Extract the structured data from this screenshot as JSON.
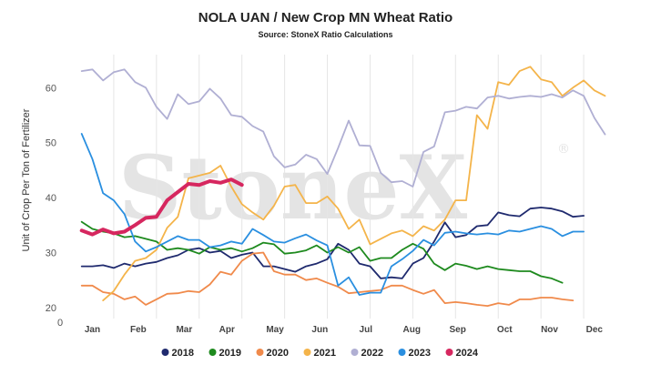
{
  "chart_data": {
    "type": "line",
    "title": "NOLA UAN / New Crop MN Wheat Ratio",
    "subtitle": "Source: StoneX Ratio Calculations",
    "ylabel": "Unit of Crop Per Ton of Fertilizer",
    "xlabel": "",
    "watermark": "StoneX",
    "watermark_mark": "®",
    "origin_label": "0",
    "ylim": [
      18,
      66
    ],
    "yticks": [
      20,
      30,
      40,
      50,
      60
    ],
    "xlim": [
      0,
      52
    ],
    "months": [
      {
        "label": "Jan",
        "week": 2
      },
      {
        "label": "Feb",
        "week": 6.3
      },
      {
        "label": "Mar",
        "week": 10.6
      },
      {
        "label": "Apr",
        "week": 14.6
      },
      {
        "label": "May",
        "week": 19.1
      },
      {
        "label": "Jun",
        "week": 23.3
      },
      {
        "label": "Jul",
        "week": 27.6
      },
      {
        "label": "Aug",
        "week": 31.9
      },
      {
        "label": "Sep",
        "week": 36.2
      },
      {
        "label": "Oct",
        "week": 40.6
      },
      {
        "label": "Nov",
        "week": 44.8
      },
      {
        "label": "Dec",
        "week": 49
      }
    ],
    "grid": "vertical",
    "legend": "bottom",
    "series": [
      {
        "name": "2018",
        "color": "#1f2a6e",
        "width": 1.8,
        "values": [
          [
            1,
            27.5
          ],
          [
            2,
            27.5
          ],
          [
            3,
            27.7
          ],
          [
            4,
            27.2
          ],
          [
            5,
            28
          ],
          [
            6,
            27.5
          ],
          [
            7,
            28
          ],
          [
            8,
            28.3
          ],
          [
            9,
            29
          ],
          [
            10,
            29.5
          ],
          [
            11,
            30.5
          ],
          [
            12,
            30.8
          ],
          [
            13,
            30
          ],
          [
            14,
            30.3
          ],
          [
            15,
            29
          ],
          [
            16,
            29.6
          ],
          [
            17,
            30
          ],
          [
            18,
            27.5
          ],
          [
            19,
            27.5
          ],
          [
            20,
            27
          ],
          [
            21,
            26.5
          ],
          [
            22,
            27.5
          ],
          [
            23,
            28
          ],
          [
            24,
            28.8
          ],
          [
            25,
            31.6
          ],
          [
            26,
            30.5
          ],
          [
            27,
            28
          ],
          [
            28,
            27.5
          ],
          [
            29,
            25.3
          ],
          [
            30,
            25.5
          ],
          [
            31,
            25.3
          ],
          [
            32,
            28
          ],
          [
            33,
            29
          ],
          [
            34,
            32
          ],
          [
            35,
            35.5
          ],
          [
            36,
            32.8
          ],
          [
            37,
            33.2
          ],
          [
            38,
            34.8
          ],
          [
            39,
            35
          ],
          [
            40,
            37.3
          ],
          [
            41,
            36.8
          ],
          [
            42,
            36.6
          ],
          [
            43,
            38
          ],
          [
            44,
            38.2
          ],
          [
            45,
            38
          ],
          [
            46,
            37.5
          ],
          [
            47,
            36.5
          ],
          [
            48,
            36.7
          ]
        ]
      },
      {
        "name": "2019",
        "color": "#1e8a1e",
        "width": 1.8,
        "values": [
          [
            1,
            35.6
          ],
          [
            2,
            34.3
          ],
          [
            3,
            33.8
          ],
          [
            4,
            33.5
          ],
          [
            5,
            32.8
          ],
          [
            6,
            33
          ],
          [
            7,
            32.5
          ],
          [
            8,
            32
          ],
          [
            9,
            30.5
          ],
          [
            10,
            30.8
          ],
          [
            11,
            30.5
          ],
          [
            12,
            29.8
          ],
          [
            13,
            31
          ],
          [
            14,
            30.5
          ],
          [
            15,
            30.8
          ],
          [
            16,
            30.2
          ],
          [
            17,
            30.8
          ],
          [
            18,
            31.8
          ],
          [
            19,
            31.5
          ],
          [
            20,
            29.8
          ],
          [
            21,
            30
          ],
          [
            22,
            30.4
          ],
          [
            23,
            31.3
          ],
          [
            24,
            30
          ],
          [
            25,
            31
          ],
          [
            26,
            30
          ],
          [
            27,
            31
          ],
          [
            28,
            28.5
          ],
          [
            29,
            29
          ],
          [
            30,
            29
          ],
          [
            31,
            30.5
          ],
          [
            32,
            31.6
          ],
          [
            33,
            30.7
          ],
          [
            34,
            28
          ],
          [
            35,
            26.8
          ],
          [
            36,
            28
          ],
          [
            37,
            27.6
          ],
          [
            38,
            27
          ],
          [
            39,
            27.5
          ],
          [
            40,
            27
          ],
          [
            41,
            26.8
          ],
          [
            42,
            26.6
          ],
          [
            43,
            26.6
          ],
          [
            44,
            25.7
          ],
          [
            45,
            25.3
          ],
          [
            46,
            24.5
          ]
        ]
      },
      {
        "name": "2020",
        "color": "#f08a4b",
        "width": 1.8,
        "values": [
          [
            1,
            24
          ],
          [
            2,
            24
          ],
          [
            3,
            22.8
          ],
          [
            4,
            22.5
          ],
          [
            5,
            21.5
          ],
          [
            6,
            22
          ],
          [
            7,
            20.5
          ],
          [
            8,
            21.5
          ],
          [
            9,
            22.5
          ],
          [
            10,
            22.6
          ],
          [
            11,
            23
          ],
          [
            12,
            22.8
          ],
          [
            13,
            24.2
          ],
          [
            14,
            26.5
          ],
          [
            15,
            26
          ],
          [
            16,
            28.5
          ],
          [
            17,
            29.8
          ],
          [
            18,
            30
          ],
          [
            19,
            26.6
          ],
          [
            20,
            26
          ],
          [
            21,
            26
          ],
          [
            22,
            25
          ],
          [
            23,
            25.3
          ],
          [
            24,
            24.5
          ],
          [
            25,
            23.8
          ],
          [
            26,
            22.6
          ],
          [
            27,
            22.8
          ],
          [
            28,
            23
          ],
          [
            29,
            23.2
          ],
          [
            30,
            24
          ],
          [
            31,
            24
          ],
          [
            32,
            23.2
          ],
          [
            33,
            22.5
          ],
          [
            34,
            23.2
          ],
          [
            35,
            20.8
          ],
          [
            36,
            21
          ],
          [
            37,
            20.8
          ],
          [
            38,
            20.5
          ],
          [
            39,
            20.3
          ],
          [
            40,
            20.8
          ],
          [
            41,
            20.5
          ],
          [
            42,
            21.5
          ],
          [
            43,
            21.5
          ],
          [
            44,
            21.8
          ],
          [
            45,
            21.8
          ],
          [
            46,
            21.5
          ],
          [
            47,
            21.3
          ]
        ]
      },
      {
        "name": "2021",
        "color": "#f4b44a",
        "width": 1.8,
        "values": [
          [
            3,
            21.3
          ],
          [
            4,
            23
          ],
          [
            5,
            26
          ],
          [
            6,
            28.5
          ],
          [
            7,
            29
          ],
          [
            8,
            30.5
          ],
          [
            9,
            34.5
          ],
          [
            10,
            36.5
          ],
          [
            11,
            43.5
          ],
          [
            12,
            44
          ],
          [
            13,
            44.5
          ],
          [
            14,
            45.8
          ],
          [
            15,
            42
          ],
          [
            16,
            38.8
          ],
          [
            17,
            37.3
          ],
          [
            18,
            36
          ],
          [
            19,
            38.5
          ],
          [
            20,
            42
          ],
          [
            21,
            42.3
          ],
          [
            22,
            39
          ],
          [
            23,
            39
          ],
          [
            24,
            40.2
          ],
          [
            25,
            38
          ],
          [
            26,
            34.3
          ],
          [
            27,
            36
          ],
          [
            28,
            31.5
          ],
          [
            29,
            32.5
          ],
          [
            30,
            33.5
          ],
          [
            31,
            34
          ],
          [
            32,
            33
          ],
          [
            33,
            34.8
          ],
          [
            34,
            34
          ],
          [
            35,
            36
          ],
          [
            36,
            39.5
          ],
          [
            37,
            39.5
          ],
          [
            38,
            55
          ],
          [
            39,
            52.5
          ],
          [
            40,
            61
          ],
          [
            41,
            60.5
          ],
          [
            42,
            63
          ],
          [
            43,
            63.8
          ],
          [
            44,
            61.5
          ],
          [
            45,
            61
          ],
          [
            46,
            58.5
          ],
          [
            47,
            60
          ],
          [
            48,
            61.3
          ],
          [
            49,
            59.5
          ],
          [
            50,
            58.5
          ]
        ]
      },
      {
        "name": "2022",
        "color": "#b0afd3",
        "width": 1.8,
        "values": [
          [
            1,
            63
          ],
          [
            2,
            63.3
          ],
          [
            3,
            61.3
          ],
          [
            4,
            62.8
          ],
          [
            5,
            63.3
          ],
          [
            6,
            61
          ],
          [
            7,
            60
          ],
          [
            8,
            56.5
          ],
          [
            9,
            54.3
          ],
          [
            10,
            58.8
          ],
          [
            11,
            57
          ],
          [
            12,
            57.5
          ],
          [
            13,
            59.8
          ],
          [
            14,
            58
          ],
          [
            15,
            55
          ],
          [
            16,
            54.7
          ],
          [
            17,
            53
          ],
          [
            18,
            52
          ],
          [
            19,
            47.5
          ],
          [
            20,
            45.5
          ],
          [
            21,
            46
          ],
          [
            22,
            47.8
          ],
          [
            23,
            47
          ],
          [
            24,
            44.3
          ],
          [
            25,
            49
          ],
          [
            26,
            54
          ],
          [
            27,
            49.5
          ],
          [
            28,
            49.4
          ],
          [
            29,
            44.5
          ],
          [
            30,
            42.8
          ],
          [
            31,
            43
          ],
          [
            32,
            42
          ],
          [
            33,
            48.3
          ],
          [
            34,
            49.3
          ],
          [
            35,
            55.5
          ],
          [
            36,
            55.8
          ],
          [
            37,
            56.5
          ],
          [
            38,
            56.2
          ],
          [
            39,
            58.2
          ],
          [
            40,
            58.5
          ],
          [
            41,
            58
          ],
          [
            42,
            58.3
          ],
          [
            43,
            58.5
          ],
          [
            44,
            58.3
          ],
          [
            45,
            58.8
          ],
          [
            46,
            58.2
          ],
          [
            47,
            59.5
          ],
          [
            48,
            58.5
          ],
          [
            49,
            54.5
          ],
          [
            50,
            51.5
          ]
        ]
      },
      {
        "name": "2023",
        "color": "#2a8fe0",
        "width": 1.8,
        "values": [
          [
            1,
            51.6
          ],
          [
            2,
            47
          ],
          [
            3,
            40.8
          ],
          [
            4,
            39.5
          ],
          [
            5,
            37
          ],
          [
            6,
            32
          ],
          [
            7,
            30.2
          ],
          [
            8,
            31
          ],
          [
            9,
            32
          ],
          [
            10,
            33
          ],
          [
            11,
            32.3
          ],
          [
            12,
            32.3
          ],
          [
            13,
            31
          ],
          [
            14,
            31.3
          ],
          [
            15,
            32
          ],
          [
            16,
            31.6
          ],
          [
            17,
            34.3
          ],
          [
            18,
            33.2
          ],
          [
            19,
            32
          ],
          [
            20,
            31.8
          ],
          [
            21,
            32.6
          ],
          [
            22,
            33.3
          ],
          [
            23,
            32.2
          ],
          [
            24,
            31.3
          ],
          [
            25,
            24
          ],
          [
            26,
            25.5
          ],
          [
            27,
            22.3
          ],
          [
            28,
            22.7
          ],
          [
            29,
            22.7
          ],
          [
            30,
            27.5
          ],
          [
            31,
            28.8
          ],
          [
            32,
            30.3
          ],
          [
            33,
            32.3
          ],
          [
            34,
            31.3
          ],
          [
            35,
            33.6
          ],
          [
            36,
            33.8
          ],
          [
            37,
            33.5
          ],
          [
            38,
            33.3
          ],
          [
            39,
            33.5
          ],
          [
            40,
            33.3
          ],
          [
            41,
            34
          ],
          [
            42,
            33.8
          ],
          [
            43,
            34.3
          ],
          [
            44,
            34.8
          ],
          [
            45,
            34.3
          ],
          [
            46,
            33
          ],
          [
            47,
            33.8
          ],
          [
            48,
            33.8
          ]
        ]
      },
      {
        "name": "2024",
        "color": "#d6275f",
        "width": 4,
        "values": [
          [
            1,
            34
          ],
          [
            2,
            33.3
          ],
          [
            3,
            34.2
          ],
          [
            4,
            33.5
          ],
          [
            5,
            33.8
          ],
          [
            6,
            35
          ],
          [
            7,
            36.3
          ],
          [
            8,
            36.5
          ],
          [
            9,
            39.5
          ],
          [
            10,
            41
          ],
          [
            11,
            42.5
          ],
          [
            12,
            42.3
          ],
          [
            13,
            43
          ],
          [
            14,
            42.7
          ],
          [
            15,
            43.3
          ],
          [
            16,
            42.3
          ]
        ]
      }
    ]
  }
}
